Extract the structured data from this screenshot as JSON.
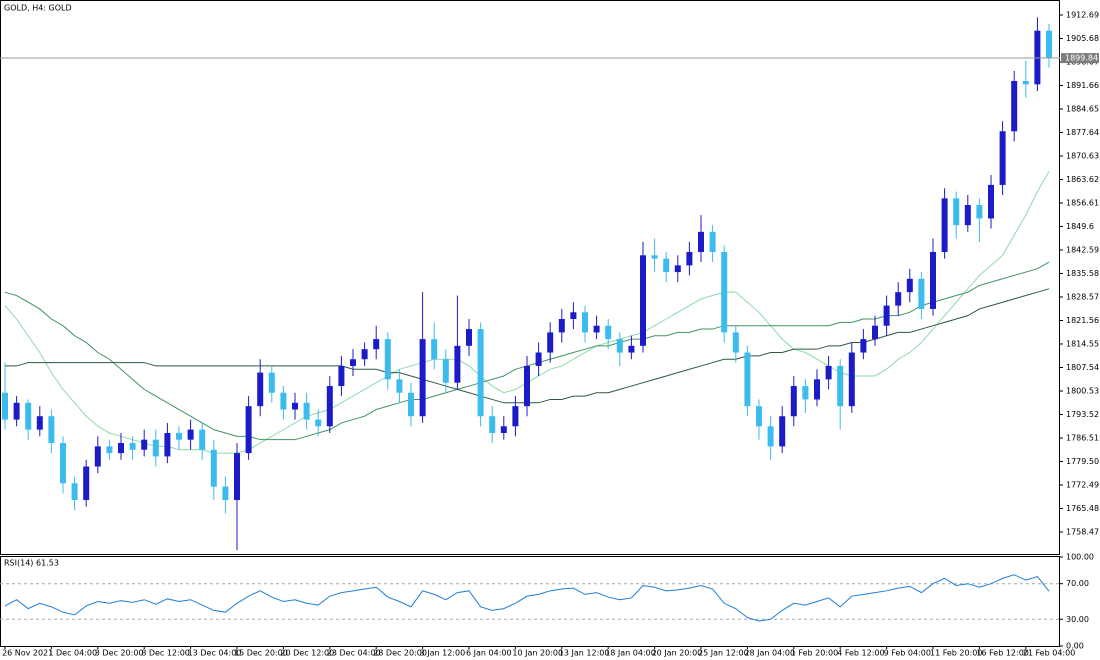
{
  "chart_data": {
    "type": "candlestick",
    "title": "GOLD, H4:  GOLD",
    "categories": [
      "26 Nov 2021",
      null,
      null,
      null,
      "1 Dec 04:00",
      null,
      null,
      null,
      "3 Dec 20:00",
      null,
      null,
      null,
      "8 Dec 12:00",
      null,
      null,
      null,
      "13 Dec 04:00",
      null,
      null,
      null,
      "15 Dec 20:00",
      null,
      null,
      null,
      "20 Dec 12:00",
      null,
      null,
      null,
      "23 Dec 04:00",
      null,
      null,
      null,
      "28 Dec 20:00",
      null,
      null,
      null,
      "3 Jan 12:00",
      null,
      null,
      null,
      "6 Jan 04:00",
      null,
      null,
      null,
      "10 Jan 20:00",
      null,
      null,
      null,
      "13 Jan 12:00",
      null,
      null,
      null,
      "18 Jan 04:00",
      null,
      null,
      null,
      "20 Jan 20:00",
      null,
      null,
      null,
      "25 Jan 12:00",
      null,
      null,
      null,
      "28 Jan 04:00",
      null,
      null,
      null,
      "1 Feb 20:00",
      null,
      null,
      null,
      "4 Feb 12:00",
      null,
      null,
      null,
      "9 Feb 04:00",
      null,
      null,
      null,
      "11 Feb 20:00",
      null,
      null,
      null,
      "16 Feb 12:00",
      null,
      null,
      null,
      "21 Feb 04:00",
      null,
      null
    ],
    "open": [
      1800,
      1792,
      1797,
      1789,
      1793,
      1785,
      1773,
      1768,
      1778,
      1784,
      1782,
      1785,
      1783,
      1786,
      1781,
      1788,
      1786,
      1789,
      1783,
      1772,
      1768,
      1782,
      1796,
      1806,
      1800,
      1795,
      1797,
      1792,
      1790,
      1802,
      1808,
      1810,
      1813,
      1816,
      1804,
      1800,
      1793,
      1816,
      1810,
      1803,
      1814,
      1819,
      1793,
      1788,
      1790,
      1796,
      1808,
      1812,
      1818,
      1822,
      1824,
      1818,
      1820,
      1816,
      1812,
      1814,
      1841,
      1840,
      1836,
      1838,
      1842,
      1848,
      1842,
      1818,
      1812,
      1796,
      1790,
      1784,
      1793,
      1802,
      1798,
      1804,
      1808,
      1796,
      1812,
      1816,
      1820,
      1826,
      1830,
      1834,
      1825,
      1842,
      1858,
      1850,
      1856,
      1852,
      1862,
      1878,
      1893,
      1892,
      1908
    ],
    "high": [
      1809,
      1799,
      1798,
      1796,
      1795,
      1787,
      1775,
      1780,
      1787,
      1786,
      1788,
      1787,
      1789,
      1789,
      1791,
      1790,
      1792,
      1791,
      1786,
      1775,
      1785,
      1799,
      1810,
      1808,
      1802,
      1800,
      1800,
      1795,
      1805,
      1811,
      1813,
      1815,
      1820,
      1818,
      1807,
      1803,
      1830,
      1821,
      1813,
      1829,
      1822,
      1821,
      1796,
      1793,
      1799,
      1811,
      1815,
      1821,
      1825,
      1827,
      1826,
      1823,
      1822,
      1818,
      1817,
      1845,
      1846,
      1842,
      1841,
      1845,
      1853,
      1850,
      1844,
      1820,
      1814,
      1798,
      1793,
      1796,
      1805,
      1804,
      1807,
      1811,
      1810,
      1815,
      1819,
      1823,
      1829,
      1833,
      1837,
      1836,
      1846,
      1861,
      1860,
      1859,
      1858,
      1865,
      1881,
      1896,
      1899,
      1912,
      1910
    ],
    "low": [
      1789,
      1790,
      1786,
      1787,
      1782,
      1770,
      1765,
      1766,
      1776,
      1780,
      1780,
      1780,
      1781,
      1778,
      1779,
      1783,
      1783,
      1780,
      1768,
      1764,
      1753,
      1780,
      1793,
      1797,
      1792,
      1792,
      1789,
      1787,
      1788,
      1799,
      1805,
      1808,
      1810,
      1801,
      1797,
      1790,
      1791,
      1807,
      1800,
      1801,
      1811,
      1790,
      1785,
      1786,
      1787,
      1793,
      1805,
      1809,
      1815,
      1819,
      1815,
      1816,
      1813,
      1808,
      1810,
      1812,
      1836,
      1833,
      1833,
      1835,
      1839,
      1839,
      1815,
      1809,
      1793,
      1786,
      1780,
      1782,
      1790,
      1794,
      1796,
      1801,
      1789,
      1794,
      1810,
      1814,
      1817,
      1823,
      1827,
      1822,
      1823,
      1840,
      1846,
      1848,
      1845,
      1849,
      1859,
      1875,
      1888,
      1890,
      1897
    ],
    "close": [
      1792,
      1797,
      1789,
      1793,
      1785,
      1773,
      1768,
      1778,
      1784,
      1782,
      1785,
      1783,
      1786,
      1781,
      1788,
      1786,
      1789,
      1783,
      1772,
      1768,
      1782,
      1796,
      1806,
      1800,
      1795,
      1797,
      1792,
      1790,
      1802,
      1808,
      1810,
      1813,
      1816,
      1804,
      1800,
      1793,
      1816,
      1810,
      1803,
      1814,
      1819,
      1793,
      1788,
      1790,
      1796,
      1808,
      1812,
      1818,
      1822,
      1824,
      1818,
      1820,
      1816,
      1812,
      1814,
      1841,
      1840,
      1836,
      1838,
      1842,
      1848,
      1842,
      1818,
      1812,
      1796,
      1790,
      1784,
      1793,
      1802,
      1798,
      1804,
      1808,
      1796,
      1812,
      1816,
      1820,
      1826,
      1830,
      1834,
      1825,
      1842,
      1858,
      1850,
      1856,
      1852,
      1862,
      1878,
      1893,
      1892,
      1908,
      1899.84
    ],
    "up_color": "#1b1bc8",
    "down_color": "#3cbcee",
    "moving_averages": [
      {
        "color": "#8fd9a8",
        "values": [
          1826,
          1822,
          1817,
          1812,
          1806,
          1801,
          1797,
          1793,
          1790,
          1788,
          1787,
          1786,
          1785,
          1784,
          1784,
          1783,
          1783,
          1783,
          1782,
          1782,
          1782,
          1783,
          1785,
          1787,
          1789,
          1791,
          1793,
          1794,
          1795,
          1797,
          1799,
          1801,
          1803,
          1805,
          1807,
          1808,
          1809,
          1810,
          1810,
          1810,
          1808,
          1805,
          1802,
          1800,
          1801,
          1803,
          1805,
          1807,
          1808,
          1810,
          1812,
          1814,
          1815,
          1816,
          1817,
          1818,
          1820,
          1822,
          1824,
          1826,
          1828,
          1829,
          1830,
          1830,
          1827,
          1824,
          1820,
          1816,
          1813,
          1812,
          1810,
          1808,
          1806,
          1805,
          1805,
          1805,
          1807,
          1810,
          1812,
          1815,
          1819,
          1823,
          1827,
          1831,
          1835,
          1838,
          1841,
          1847,
          1853,
          1860,
          1866
        ]
      },
      {
        "color": "#3f9460",
        "values": [
          1830,
          1829,
          1827,
          1825,
          1822,
          1820,
          1817,
          1815,
          1812,
          1810,
          1807,
          1804,
          1801,
          1799,
          1797,
          1795,
          1793,
          1791,
          1789,
          1788,
          1787,
          1787,
          1786,
          1786,
          1786,
          1786,
          1787,
          1788,
          1789,
          1791,
          1792,
          1793,
          1795,
          1796,
          1797,
          1798,
          1798,
          1799,
          1800,
          1801,
          1802,
          1803,
          1804,
          1805,
          1807,
          1808,
          1809,
          1810,
          1811,
          1812,
          1813,
          1814,
          1814,
          1815,
          1816,
          1816,
          1817,
          1817,
          1818,
          1818,
          1819,
          1819,
          1820,
          1820,
          1820,
          1820,
          1820,
          1820,
          1820,
          1820,
          1820,
          1820,
          1821,
          1821,
          1822,
          1822,
          1823,
          1823,
          1824,
          1826,
          1827,
          1828,
          1829,
          1830,
          1832,
          1833,
          1834,
          1835,
          1836,
          1837,
          1839
        ]
      },
      {
        "color": "#2d5a3c",
        "values": [
          1808,
          1808,
          1809,
          1809,
          1809,
          1809,
          1809,
          1809,
          1809,
          1809,
          1809,
          1809,
          1809,
          1808,
          1808,
          1808,
          1808,
          1808,
          1808,
          1808,
          1808,
          1808,
          1808,
          1808,
          1808,
          1808,
          1808,
          1808,
          1808,
          1808,
          1807,
          1807,
          1807,
          1806,
          1806,
          1805,
          1804,
          1803,
          1802,
          1801,
          1800,
          1799,
          1798,
          1797,
          1797,
          1797,
          1797,
          1798,
          1798,
          1799,
          1799,
          1800,
          1800,
          1801,
          1802,
          1803,
          1804,
          1805,
          1806,
          1807,
          1808,
          1809,
          1810,
          1810,
          1811,
          1811,
          1812,
          1812,
          1813,
          1813,
          1813,
          1814,
          1814,
          1815,
          1815,
          1816,
          1817,
          1818,
          1818,
          1819,
          1820,
          1821,
          1822,
          1823,
          1825,
          1826,
          1827,
          1828,
          1829,
          1830,
          1831
        ]
      }
    ],
    "ylim": [
      1751.6,
      1917.16
    ],
    "yticks": [
      1912.69,
      1905.68,
      1898.67,
      1891.66,
      1884.65,
      1877.64,
      1870.63,
      1863.62,
      1856.61,
      1849.6,
      1842.59,
      1835.58,
      1828.57,
      1821.56,
      1814.55,
      1807.54,
      1800.53,
      1793.52,
      1786.51,
      {
        "value": 1779.5,
        "label": "1779.50"
      },
      1772.49,
      1765.48,
      1758.47
    ],
    "rsi": {
      "label": "RSI(14)",
      "color": "#1e7fd6",
      "values": [
        45,
        52,
        42,
        48,
        44,
        38,
        35,
        45,
        50,
        48,
        51,
        49,
        52,
        47,
        53,
        50,
        52,
        46,
        40,
        38,
        48,
        56,
        62,
        55,
        50,
        52,
        48,
        46,
        56,
        60,
        62,
        64,
        66,
        55,
        50,
        44,
        62,
        58,
        52,
        60,
        62,
        44,
        40,
        42,
        48,
        56,
        58,
        62,
        64,
        65,
        58,
        60,
        55,
        52,
        54,
        68,
        66,
        62,
        63,
        65,
        68,
        64,
        48,
        42,
        32,
        28,
        30,
        40,
        48,
        46,
        50,
        54,
        44,
        56,
        58,
        60,
        62,
        65,
        67,
        60,
        70,
        76,
        68,
        70,
        66,
        70,
        76,
        80,
        74,
        78,
        61.53
      ],
      "ylim": [
        0,
        100
      ],
      "yticks": [
        {
          "value": 100,
          "label": "100.00"
        },
        {
          "value": 70,
          "label": "70.00"
        },
        {
          "value": 30,
          "label": "30.00"
        },
        {
          "value": 0,
          "label": "0.00"
        }
      ],
      "levels": [
        70,
        30
      ]
    }
  }
}
